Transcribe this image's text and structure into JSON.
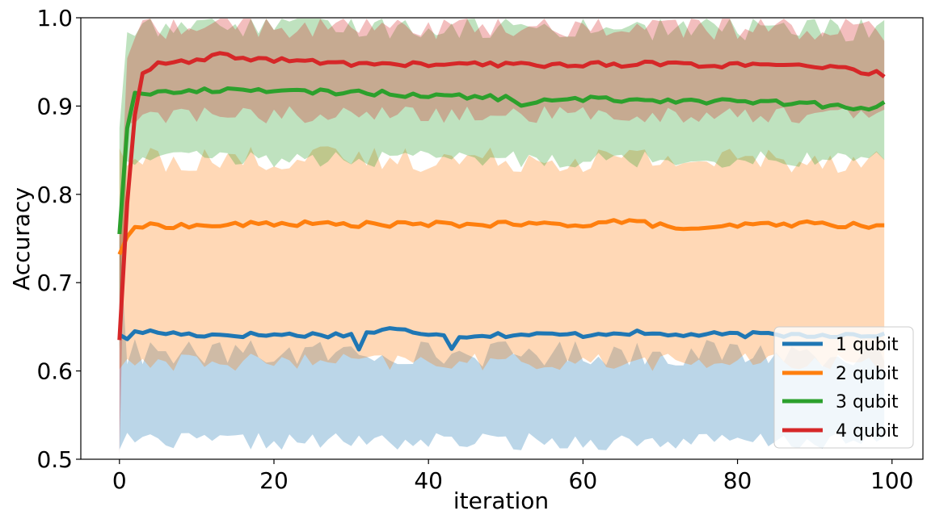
{
  "chart_data": {
    "type": "line",
    "title": "",
    "xlabel": "iteration",
    "ylabel": "Accuracy",
    "xlim": [
      -5,
      104
    ],
    "ylim": [
      0.5,
      1.0
    ],
    "xticks": [
      0,
      20,
      40,
      60,
      80,
      100
    ],
    "yticks": [
      0.5,
      0.6,
      0.7,
      0.8,
      0.9,
      1.0
    ],
    "xtick_labels": [
      "0",
      "20",
      "40",
      "60",
      "80",
      "100"
    ],
    "ytick_labels": [
      "0.5",
      "0.6",
      "0.7",
      "0.8",
      "0.9",
      "1.0"
    ],
    "grid": false,
    "legend_position": "bottom-right",
    "x": {
      "start": 0,
      "end": 99,
      "step": 1
    },
    "series": [
      {
        "name": "1 qubit",
        "color": "#1f77b4",
        "mean_key_points": [
          [
            0,
            0.641
          ],
          [
            1,
            0.636
          ],
          [
            2,
            0.645
          ],
          [
            10,
            0.641
          ],
          [
            20,
            0.641
          ],
          [
            30,
            0.641
          ],
          [
            31,
            0.626
          ],
          [
            32,
            0.643
          ],
          [
            35,
            0.647
          ],
          [
            40,
            0.643
          ],
          [
            42,
            0.643
          ],
          [
            43,
            0.624
          ],
          [
            44,
            0.64
          ],
          [
            50,
            0.641
          ],
          [
            60,
            0.641
          ],
          [
            65,
            0.644
          ],
          [
            70,
            0.641
          ],
          [
            80,
            0.641
          ],
          [
            90,
            0.641
          ],
          [
            99,
            0.641
          ]
        ],
        "band_lower": 0.52,
        "band_upper": 0.62
      },
      {
        "name": "2 qubit",
        "color": "#ff7f0e",
        "mean_key_points": [
          [
            0,
            0.732
          ],
          [
            1,
            0.752
          ],
          [
            2,
            0.763
          ],
          [
            5,
            0.765
          ],
          [
            10,
            0.764
          ],
          [
            20,
            0.767
          ],
          [
            30,
            0.766
          ],
          [
            40,
            0.766
          ],
          [
            50,
            0.766
          ],
          [
            60,
            0.766
          ],
          [
            65,
            0.77
          ],
          [
            70,
            0.765
          ],
          [
            75,
            0.759
          ],
          [
            80,
            0.765
          ],
          [
            90,
            0.767
          ],
          [
            99,
            0.763
          ]
        ],
        "band_lower": 0.61,
        "band_upper": 0.84
      },
      {
        "name": "3 qubit",
        "color": "#2ca02c",
        "mean_key_points": [
          [
            0,
            0.755
          ],
          [
            1,
            0.875
          ],
          [
            2,
            0.915
          ],
          [
            5,
            0.915
          ],
          [
            10,
            0.917
          ],
          [
            17,
            0.92
          ],
          [
            20,
            0.916
          ],
          [
            30,
            0.916
          ],
          [
            40,
            0.912
          ],
          [
            50,
            0.909
          ],
          [
            52,
            0.903
          ],
          [
            60,
            0.908
          ],
          [
            70,
            0.907
          ],
          [
            80,
            0.905
          ],
          [
            90,
            0.902
          ],
          [
            96,
            0.896
          ],
          [
            99,
            0.902
          ]
        ],
        "band_lower": 0.84,
        "band_upper": 0.99
      },
      {
        "name": "4 qubit",
        "color": "#d62728",
        "mean_key_points": [
          [
            0,
            0.635
          ],
          [
            1,
            0.79
          ],
          [
            2,
            0.89
          ],
          [
            3,
            0.938
          ],
          [
            5,
            0.947
          ],
          [
            10,
            0.951
          ],
          [
            13,
            0.957
          ],
          [
            20,
            0.952
          ],
          [
            30,
            0.948
          ],
          [
            40,
            0.947
          ],
          [
            50,
            0.947
          ],
          [
            60,
            0.947
          ],
          [
            70,
            0.948
          ],
          [
            80,
            0.946
          ],
          [
            90,
            0.945
          ],
          [
            99,
            0.936
          ]
        ],
        "band_lower": 0.89,
        "band_upper": 0.99
      }
    ],
    "legend_entries": [
      "1 qubit",
      "2 qubit",
      "3 qubit",
      "4 qubit"
    ]
  }
}
